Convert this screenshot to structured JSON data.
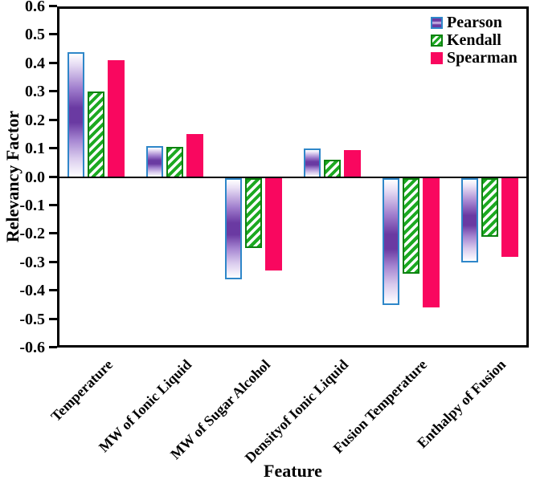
{
  "chart_data": {
    "type": "bar",
    "title": "",
    "xlabel": "Feature",
    "ylabel": "Relevancy Factor",
    "ylim": [
      -0.6,
      0.6
    ],
    "yticks": [
      0.6,
      0.5,
      0.4,
      0.3,
      0.2,
      0.1,
      0.0,
      -0.1,
      -0.2,
      -0.3,
      -0.4,
      -0.5,
      -0.6
    ],
    "grid": false,
    "legend_position": "top-right-inside",
    "categories": [
      "Temperature",
      "MW of Ionic Liquid",
      "MW of Sugar Alcohol",
      "Densityof Ionic Liquid",
      "Fusion Temperature",
      "Enthalpy of Fusion"
    ],
    "series": [
      {
        "name": "Pearson",
        "style": "pearson",
        "values": [
          0.44,
          0.11,
          -0.36,
          0.1,
          -0.45,
          -0.3
        ]
      },
      {
        "name": "Kendall",
        "style": "kendall",
        "values": [
          0.3,
          0.105,
          -0.25,
          0.06,
          -0.34,
          -0.21
        ]
      },
      {
        "name": "Spearman",
        "style": "spearman",
        "values": [
          0.41,
          0.15,
          -0.33,
          0.095,
          -0.46,
          -0.28
        ]
      }
    ]
  },
  "colors": {
    "pearson_border": "#2f87c9",
    "pearson_fill": "#6a3aa2",
    "kendall_stripe": "#1ca921",
    "kendall_border": "#0b820f",
    "spearman_fill": "#f9075f",
    "axis": "#000000",
    "background": "#ffffff"
  }
}
